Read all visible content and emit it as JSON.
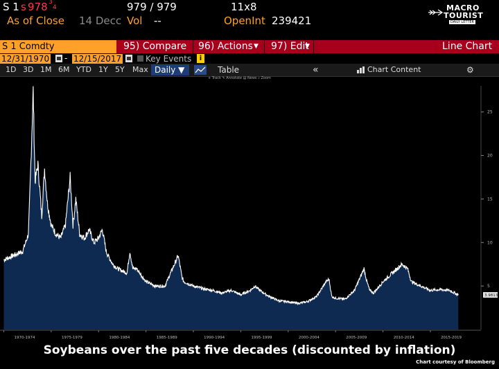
{
  "header": {
    "security_short": "S 1",
    "price_prefix": "s",
    "price_main": "978",
    "price_frac": "3",
    "price_frac2": "4",
    "bid_ask": "979 / 979",
    "size": "11x8",
    "as_of_label": "As of Close",
    "as_of_date": "14 Decc",
    "vol_label": "Vol",
    "vol_value": "--",
    "openint_label": "OpenInt",
    "openint_value": "239421"
  },
  "logo": {
    "line1": "MACRO",
    "line2": "TOURIST",
    "line3": "DAILY LETTER"
  },
  "toolbar": {
    "security": "S 1 Comdty",
    "compare": "95) Compare",
    "actions": "96) Actions",
    "edit": "97) Edit",
    "view": "Line Chart"
  },
  "dates": {
    "start": "12/31/1970",
    "dash": "-",
    "end": "12/15/2017",
    "key_events": "Key Events",
    "info": "i"
  },
  "ranges": [
    "1D",
    "3D",
    "1M",
    "6M",
    "YTD",
    "1Y",
    "5Y",
    "Max"
  ],
  "frequency": "Daily ▼",
  "table_label": "Table",
  "collapse_label": "«",
  "chart_content_label": "Chart Content",
  "subtools": "+ Track  ✎ Annotate  ▤ News  ⌕ Zoom",
  "colors": {
    "orange": "#ffa028",
    "toolbar_red": "#a8001c",
    "area_fill": "#0f2a50",
    "line": "#ffffff"
  },
  "chart_data": {
    "type": "area",
    "ylim": [
      0,
      28
    ],
    "yticks": [
      5,
      10,
      15,
      20,
      25
    ],
    "last_value_label": "3.9813",
    "xtick_labels": [
      "1970-1974",
      "1975-1979",
      "1980-1984",
      "1985-1989",
      "1990-1994",
      "1995-1999",
      "2000-2004",
      "2005-2009",
      "2010-2014",
      "2015-2019"
    ],
    "x": [
      1970,
      1971,
      1972,
      1972.6,
      1972.9,
      1973.1,
      1973.3,
      1973.6,
      1974,
      1974.3,
      1974.6,
      1975,
      1975.5,
      1976,
      1976.5,
      1977,
      1977.3,
      1977.6,
      1978,
      1978.5,
      1979,
      1979.5,
      1980,
      1980.4,
      1980.8,
      1981,
      1981.5,
      1982,
      1983,
      1983.3,
      1983.6,
      1984,
      1985,
      1986,
      1987,
      1988,
      1988.4,
      1988.8,
      1989,
      1990,
      1991,
      1992,
      1993,
      1994,
      1995,
      1996,
      1996.5,
      1997,
      1998,
      1999,
      2000,
      2001,
      2002,
      2003,
      2004,
      2004.3,
      2004.6,
      2005,
      2006,
      2007,
      2007.6,
      2008,
      2008.3,
      2008.6,
      2009,
      2010,
      2011,
      2012,
      2012.6,
      2013,
      2014,
      2015,
      2016,
      2017,
      2017.95
    ],
    "values": [
      8.0,
      8.5,
      9.0,
      11.0,
      20.5,
      27.5,
      17.0,
      19.0,
      13.0,
      18.5,
      14.5,
      12.0,
      11.0,
      10.5,
      12.0,
      17.5,
      12.0,
      15.0,
      11.0,
      10.5,
      11.5,
      10.0,
      10.5,
      11.5,
      9.0,
      8.5,
      7.5,
      7.0,
      6.5,
      9.0,
      7.0,
      7.0,
      5.5,
      5.0,
      5.0,
      7.5,
      8.5,
      6.0,
      5.5,
      5.0,
      4.7,
      4.5,
      4.2,
      4.5,
      4.0,
      4.5,
      5.0,
      4.5,
      3.8,
      3.3,
      3.2,
      3.0,
      3.2,
      3.8,
      5.5,
      5.8,
      3.8,
      3.6,
      3.5,
      4.5,
      6.0,
      7.0,
      5.5,
      4.5,
      4.2,
      5.5,
      6.5,
      7.5,
      7.0,
      5.5,
      5.0,
      4.5,
      4.6,
      4.5,
      3.98
    ]
  },
  "caption": "Soybeans over the past five decades (discounted by inflation)",
  "credit": "Chart courtesy of Bloomberg"
}
